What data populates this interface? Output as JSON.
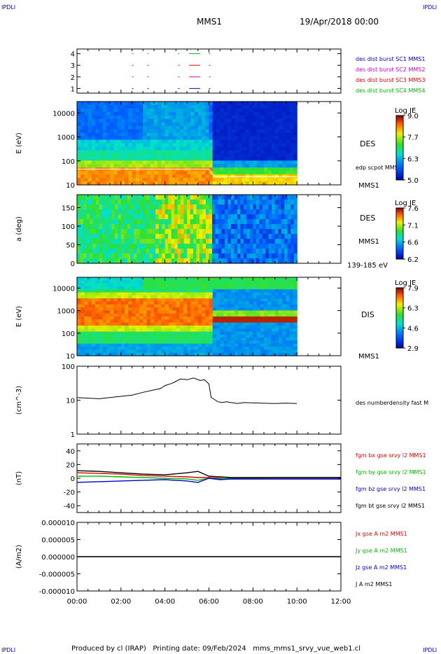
{
  "header": {
    "logo": "IPDLI",
    "mission": "MMS1",
    "date": "19/Apr/2018 00:00"
  },
  "footer": {
    "text": "Produced by cl (IRAP)   Printing date: 09/Feb/2024   mms_mms1_srvy_vue_web1.cl"
  },
  "time_axis": {
    "ticks": [
      "00:00",
      "02:00",
      "04:00",
      "06:00",
      "08:00",
      "10:00",
      "12:00"
    ],
    "range_hours": [
      0,
      12
    ]
  },
  "colors": {
    "red": "#dd0000",
    "green": "#00bb00",
    "blue": "#0000cc",
    "magenta": "#cc00cc",
    "black": "#000000"
  },
  "chart_data": [
    {
      "id": "burst",
      "type": "scatter",
      "y_ticks": [
        "1",
        "2",
        "3",
        "4"
      ],
      "ylim": [
        0.6,
        4.4
      ],
      "legend": [
        {
          "label": "des dist burst SC1 MMS1",
          "color": "#0000cc"
        },
        {
          "label": "des dist burst SC2 MMS2",
          "color": "#cc00cc"
        },
        {
          "label": "des dist burst SC3 MMS3",
          "color": "#dd0000"
        },
        {
          "label": "des dist burst SC4 MMS4",
          "color": "#00bb00"
        }
      ],
      "intervals_hours": [
        [
          2.5,
          2.55
        ],
        [
          3.2,
          3.25
        ],
        [
          4.6,
          4.65
        ],
        [
          5.1,
          5.6
        ],
        [
          6.0,
          6.05
        ]
      ]
    },
    {
      "id": "des_energy",
      "type": "heatmap",
      "ylabel": "E (eV)",
      "y_ticks": [
        "10",
        "100",
        "1000",
        "10000"
      ],
      "ylim": [
        10,
        30000
      ],
      "label_right": "DES",
      "sub_label": "edp scpot MMS1",
      "label_bottom": "MMS1",
      "colorbar": {
        "title": "Log JE",
        "ticks": [
          "9.0",
          "7.7",
          "6.3",
          "5.0"
        ],
        "range": [
          5.0,
          9.0
        ]
      },
      "data_end_hours": 10.0
    },
    {
      "id": "des_pitch",
      "type": "heatmap",
      "ylabel": "a (deg)",
      "y_ticks": [
        "0",
        "50",
        "100",
        "150"
      ],
      "ylim": [
        0,
        185
      ],
      "label_right": "DES",
      "label_bottom": "MMS1",
      "energy_range": "139-185 eV",
      "colorbar": {
        "title": "Log JE",
        "ticks": [
          "7.6",
          "7.1",
          "6.6",
          "6.2"
        ],
        "range": [
          6.2,
          7.6
        ]
      },
      "data_end_hours": 10.0
    },
    {
      "id": "dis_energy",
      "type": "heatmap",
      "ylabel": "E (eV)",
      "y_ticks": [
        "10",
        "100",
        "1000",
        "10000"
      ],
      "ylim": [
        10,
        30000
      ],
      "label_right": "DIS",
      "label_bottom": "MMS1",
      "colorbar": {
        "title": "Log JE",
        "ticks": [
          "7.9",
          "6.3",
          "4.6",
          "2.9"
        ],
        "range": [
          2.9,
          7.9
        ]
      },
      "data_end_hours": 10.0
    },
    {
      "id": "density",
      "type": "line",
      "ylabel": "(cm^-3)",
      "y_ticks": [
        "1",
        "10",
        "100"
      ],
      "ylim": [
        1,
        100
      ],
      "log": true,
      "series": [
        {
          "name": "des numberdensity fast M",
          "color": "#000000",
          "x": [
            0,
            0.5,
            1.0,
            1.5,
            2.0,
            2.5,
            3.0,
            3.5,
            3.8,
            4.0,
            4.3,
            4.5,
            4.7,
            5.0,
            5.3,
            5.6,
            5.8,
            6.0,
            6.1,
            6.2,
            6.4,
            6.6,
            6.8,
            7.0,
            7.3,
            7.6,
            8.0,
            8.5,
            9.0,
            9.5,
            10.0
          ],
          "y": [
            12,
            11.5,
            11,
            12,
            13,
            14,
            17,
            20,
            22,
            27,
            31,
            36,
            42,
            40,
            45,
            38,
            40,
            30,
            12,
            11,
            9,
            8.5,
            9,
            8.5,
            8,
            8.5,
            8.3,
            8.1,
            8.0,
            8.2,
            8.0
          ]
        }
      ]
    },
    {
      "id": "fgm",
      "type": "line",
      "ylabel": "(nT)",
      "y_ticks": [
        "-40",
        "-20",
        "0",
        "20",
        "40"
      ],
      "ylim": [
        -50,
        50
      ],
      "series": [
        {
          "name": "fgm bx gse srvy l2 MMS1",
          "color": "#dd0000",
          "x": [
            0,
            1,
            2,
            3,
            4,
            5,
            5.5,
            6,
            6.5,
            7,
            8,
            9,
            10,
            11,
            12
          ],
          "y": [
            8,
            7,
            6,
            4,
            3,
            2,
            1,
            1,
            0,
            -1,
            -1,
            -1,
            -1,
            -1,
            -1
          ]
        },
        {
          "name": "fgm by gse srvy l2 MMS1",
          "color": "#00bb00",
          "x": [
            0,
            1,
            2,
            3,
            4,
            5,
            5.5,
            6,
            6.5,
            7,
            8,
            9,
            10,
            11,
            12
          ],
          "y": [
            3,
            3,
            2,
            1,
            0,
            -1,
            -3,
            0,
            -1,
            0,
            0,
            1,
            1,
            1,
            1
          ]
        },
        {
          "name": "fgm bz gse srvy l2 MMS1",
          "color": "#0000cc",
          "x": [
            0,
            1,
            2,
            3,
            4,
            5,
            5.5,
            6,
            6.5,
            7,
            8,
            9,
            10,
            11,
            12
          ],
          "y": [
            -6,
            -5,
            -4,
            -3,
            -2,
            -4,
            -6,
            0,
            -2,
            -1,
            -1,
            -1,
            -1,
            -1,
            -1
          ]
        },
        {
          "name": "fgm bt gse srvy l2 MMS1",
          "color": "#000000",
          "x": [
            0,
            1,
            2,
            3,
            4,
            5,
            5.5,
            6,
            6.5,
            7,
            8,
            9,
            10,
            11,
            12
          ],
          "y": [
            11,
            10,
            8,
            6,
            5,
            8,
            10,
            3,
            2,
            1,
            1,
            1,
            1,
            1,
            1
          ]
        }
      ]
    },
    {
      "id": "current",
      "type": "line",
      "ylabel": "(A/m2)",
      "y_ticks": [
        "-0.000010",
        "-0.000005",
        "0.000000",
        "0.000005",
        "0.000010"
      ],
      "ylim": [
        -1e-05,
        1e-05
      ],
      "series": [
        {
          "name": "Jx gse A m2 MMS1",
          "color": "#dd0000",
          "x": [
            0,
            12
          ],
          "y": [
            0,
            0
          ]
        },
        {
          "name": "Jy gse A m2 MMS1",
          "color": "#00bb00",
          "x": [
            0,
            12
          ],
          "y": [
            0,
            0
          ]
        },
        {
          "name": "Jz gse A m2 MMS1",
          "color": "#0000cc",
          "x": [
            0,
            12
          ],
          "y": [
            0,
            0
          ]
        },
        {
          "name": "J A m2 MMS1",
          "color": "#000000",
          "x": [
            0,
            12
          ],
          "y": [
            0,
            0
          ]
        }
      ]
    }
  ]
}
